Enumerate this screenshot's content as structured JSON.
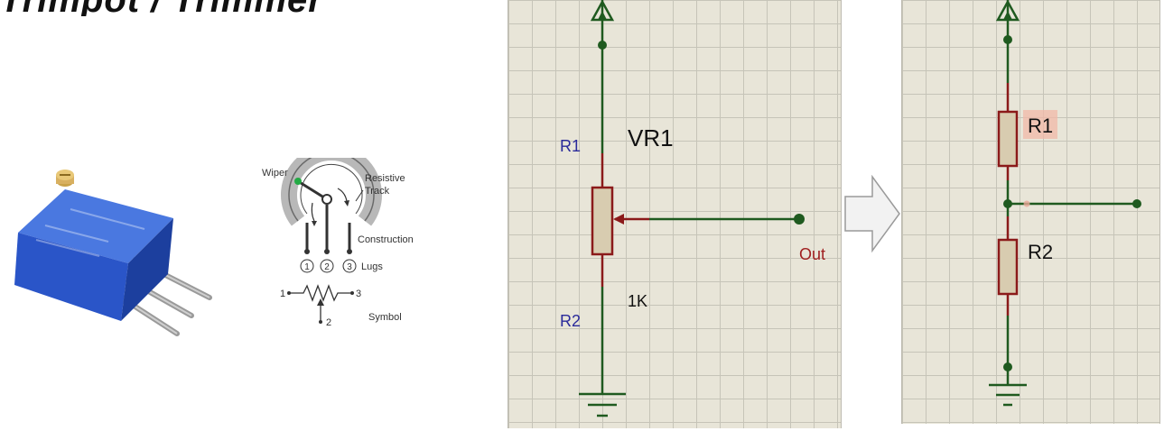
{
  "header": {
    "title_fragment": "Trimpot / Trimmer Potentiometer"
  },
  "diagram_labels": {
    "wiper": "Wiper",
    "resistive": "Resistive",
    "track": "Track",
    "construction": "Construction",
    "lug1": "1",
    "lug2": "2",
    "lug3": "3",
    "lugs": "Lugs",
    "sym1": "1",
    "sym2": "2",
    "sym3": "3",
    "symbol": "Symbol"
  },
  "left_schematic": {
    "r1": "R1",
    "vr1": "VR1",
    "r2": "R2",
    "value": "1K",
    "out": "Out"
  },
  "right_schematic": {
    "r1": "R1",
    "r2": "R2"
  },
  "colors": {
    "wire": "#1f5a1f",
    "resistor_body": "#d8ccb0",
    "resistor_outline": "#8b1a1a",
    "label_blue": "#2a2a9a",
    "label_red": "#a02020",
    "highlight": "#f2b8a8",
    "trimpot_blue": "#2a55c8"
  }
}
